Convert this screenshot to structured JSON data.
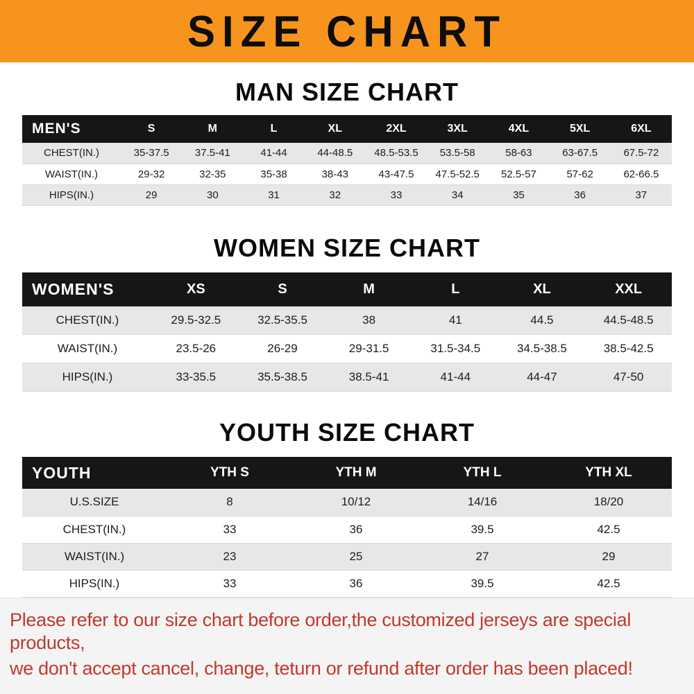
{
  "banner": {
    "title": "SIZE CHART"
  },
  "colors": {
    "banner_bg": "#f7941e",
    "table_header_bg": "#161616",
    "row_stripe": "#e7e7e7",
    "footer_text": "#c0392b"
  },
  "chart_data": [
    {
      "type": "table",
      "title": "MAN SIZE CHART",
      "columns": [
        "MEN'S",
        "S",
        "M",
        "L",
        "XL",
        "2XL",
        "3XL",
        "4XL",
        "5XL",
        "6XL"
      ],
      "rows": [
        [
          "CHEST(IN.)",
          "35-37.5",
          "37.5-41",
          "41-44",
          "44-48.5",
          "48.5-53.5",
          "53.5-58",
          "58-63",
          "63-67.5",
          "67.5-72"
        ],
        [
          "WAIST(IN.)",
          "29-32",
          "32-35",
          "35-38",
          "38-43",
          "43-47.5",
          "47.5-52.5",
          "52.5-57",
          "57-62",
          "62-66.5"
        ],
        [
          "HIPS(IN.)",
          "29",
          "30",
          "31",
          "32",
          "33",
          "34",
          "35",
          "36",
          "37"
        ]
      ]
    },
    {
      "type": "table",
      "title": "WOMEN SIZE CHART",
      "columns": [
        "WOMEN'S",
        "XS",
        "S",
        "M",
        "L",
        "XL",
        "XXL"
      ],
      "rows": [
        [
          "CHEST(IN.)",
          "29.5-32.5",
          "32.5-35.5",
          "38",
          "41",
          "44.5",
          "44.5-48.5"
        ],
        [
          "WAIST(IN.)",
          "23.5-26",
          "26-29",
          "29-31.5",
          "31.5-34.5",
          "34.5-38.5",
          "38.5-42.5"
        ],
        [
          "HIPS(IN.)",
          "33-35.5",
          "35.5-38.5",
          "38.5-41",
          "41-44",
          "44-47",
          "47-50"
        ]
      ]
    },
    {
      "type": "table",
      "title": "YOUTH SIZE CHART",
      "columns": [
        "YOUTH",
        "YTH S",
        "YTH M",
        "YTH L",
        "YTH XL"
      ],
      "rows": [
        [
          "U.S.SIZE",
          "8",
          "10/12",
          "14/16",
          "18/20"
        ],
        [
          "CHEST(IN.)",
          "33",
          "36",
          "39.5",
          "42.5"
        ],
        [
          "WAIST(IN.)",
          "23",
          "25",
          "27",
          "29"
        ],
        [
          "HIPS(IN.)",
          "33",
          "36",
          "39.5",
          "42.5"
        ]
      ]
    }
  ],
  "footer": {
    "line1": "Please refer to our size chart before order,the customized jerseys are special products,",
    "line2": "we don't accept cancel, change, teturn or refund after order has been placed!"
  }
}
